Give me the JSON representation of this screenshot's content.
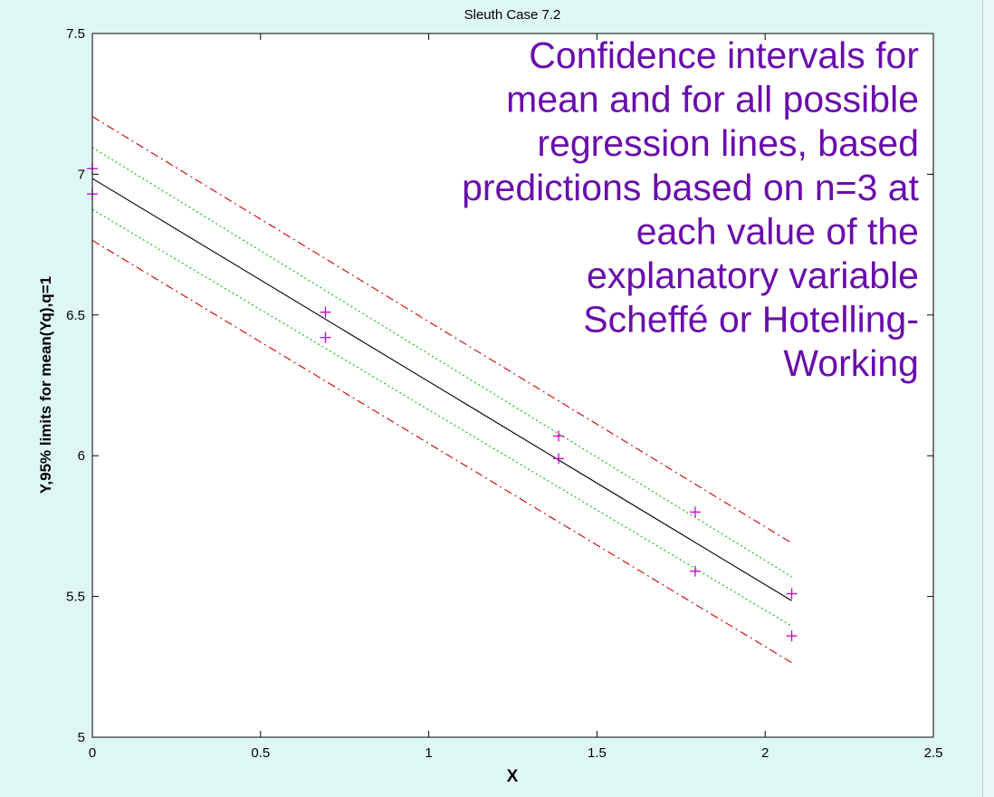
{
  "colors": {
    "background": "#dff7f4",
    "plot_area": "#ffffff",
    "fit_line": "#000000",
    "mean_band": "#00bb00",
    "regression_band": "#cc0000",
    "observations": "#cc00cc",
    "annotation": "#6a0dad"
  },
  "chart_data": {
    "type": "line",
    "title": "Sleuth Case 7.2",
    "xlabel": "X",
    "ylabel": "Y,95% limits for mean(Yq),q=1",
    "xlim": [
      0,
      2.5
    ],
    "ylim": [
      5,
      7.5
    ],
    "xticks": [
      0,
      0.5,
      1,
      1.5,
      2,
      2.5
    ],
    "yticks": [
      5,
      5.5,
      6,
      6.5,
      7,
      7.5
    ],
    "xtick_labels": [
      "0",
      "0.5",
      "1",
      "1.5",
      "2",
      "2.5"
    ],
    "ytick_labels": [
      "5",
      "5.5",
      "6",
      "6.5",
      "7",
      "7.5"
    ],
    "grid": false,
    "annotation_lines": [
      "Confidence intervals for",
      "mean and for all possible",
      "regression lines, based",
      "predictions based on n=3 at",
      "each value of the",
      "explanatory variable",
      "Scheffé or Hotelling-",
      "Working"
    ],
    "series": [
      {
        "style": "solid",
        "color": "#000000",
        "x": [
          0,
          2.079
        ],
        "y": [
          6.985,
          5.485
        ]
      },
      {
        "style": "dotted",
        "color": "#00bb00",
        "x": [
          0,
          2.079
        ],
        "y": [
          7.095,
          5.57
        ]
      },
      {
        "style": "dotted",
        "color": "#00bb00",
        "x": [
          0,
          2.079
        ],
        "y": [
          6.875,
          5.395
        ]
      },
      {
        "style": "dashdot",
        "color": "#cc0000",
        "x": [
          0,
          2.079
        ],
        "y": [
          7.205,
          5.69
        ]
      },
      {
        "style": "dashdot",
        "color": "#cc0000",
        "x": [
          0,
          2.079
        ],
        "y": [
          6.765,
          5.265
        ]
      },
      {
        "style": "markers",
        "marker": "+",
        "color": "#cc00cc",
        "x": [
          0,
          0,
          0.693,
          0.693,
          1.386,
          1.386,
          1.792,
          1.792,
          2.079,
          2.079
        ],
        "y": [
          7.02,
          6.93,
          6.51,
          6.42,
          6.07,
          5.99,
          5.8,
          5.59,
          5.51,
          5.36
        ]
      }
    ]
  }
}
